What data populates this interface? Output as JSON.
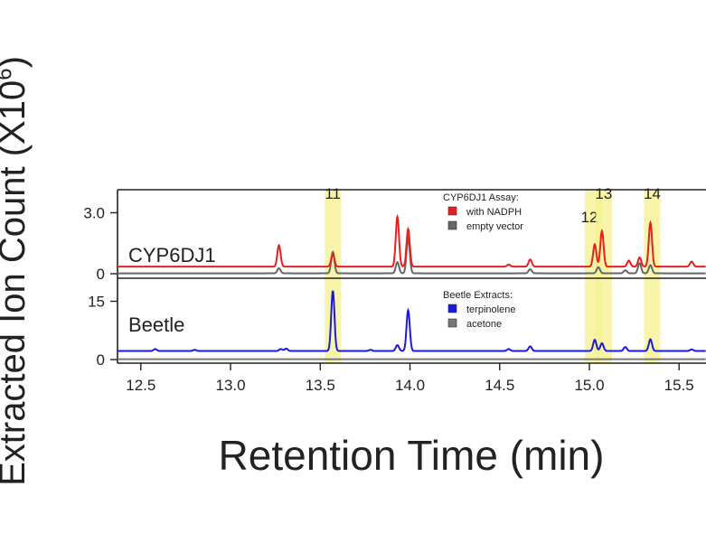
{
  "chart_data": [
    {
      "type": "line",
      "panel_label": "CYP6DJ1",
      "legend_title": "CYP6DJ1 Assay:",
      "legend": [
        "with NADPH",
        "empty vector"
      ],
      "y_ticks": [
        "3.0",
        "0"
      ],
      "ylim": [
        0,
        3.6
      ],
      "series": [
        {
          "name": "with NADPH",
          "color": "#e8201c",
          "baseline": 0.35,
          "peaks": [
            [
              13.27,
              1.05
            ],
            [
              13.57,
              0.6
            ],
            [
              13.93,
              2.45
            ],
            [
              13.99,
              1.85
            ],
            [
              14.55,
              0.1
            ],
            [
              14.67,
              0.35
            ],
            [
              15.03,
              1.1
            ],
            [
              15.07,
              1.75
            ],
            [
              15.22,
              0.3
            ],
            [
              15.28,
              0.45
            ],
            [
              15.34,
              2.15
            ],
            [
              15.57,
              0.25
            ]
          ]
        },
        {
          "name": "empty vector",
          "color": "#666666",
          "baseline": 0.02,
          "peaks": [
            [
              13.27,
              0.25
            ],
            [
              13.57,
              1.05
            ],
            [
              13.93,
              0.55
            ],
            [
              13.99,
              1.75
            ],
            [
              14.67,
              0.2
            ],
            [
              15.05,
              0.3
            ],
            [
              15.2,
              0.15
            ],
            [
              15.28,
              0.5
            ],
            [
              15.34,
              0.4
            ]
          ]
        }
      ]
    },
    {
      "type": "line",
      "panel_label": "Beetle",
      "legend_title": "Beetle Extracts:",
      "legend": [
        "terpinolene",
        "acetone"
      ],
      "y_ticks": [
        "15",
        "0"
      ],
      "ylim": [
        0,
        20
      ],
      "series": [
        {
          "name": "terpinolene",
          "color": "#1a1ae6",
          "baseline": 2.2,
          "peaks": [
            [
              12.58,
              0.5
            ],
            [
              12.8,
              0.3
            ],
            [
              13.28,
              0.5
            ],
            [
              13.31,
              0.6
            ],
            [
              13.57,
              15.5
            ],
            [
              13.78,
              0.3
            ],
            [
              13.93,
              1.5
            ],
            [
              13.99,
              10.5
            ],
            [
              14.55,
              0.5
            ],
            [
              14.67,
              1.2
            ],
            [
              15.03,
              2.9
            ],
            [
              15.07,
              2.0
            ],
            [
              15.2,
              1.0
            ],
            [
              15.34,
              3.0
            ],
            [
              15.57,
              0.4
            ]
          ]
        },
        {
          "name": "acetone",
          "color": "#777777",
          "baseline": 0.1,
          "peaks": []
        }
      ]
    }
  ],
  "x_ticks": [
    "12.5",
    "13.0",
    "13.5",
    "14.0",
    "14.5",
    "15.0",
    "15.5"
  ],
  "x_tick_values": [
    12.5,
    13.0,
    13.5,
    14.0,
    14.5,
    15.0,
    15.5
  ],
  "xlim": [
    12.37,
    15.65
  ],
  "xlabel": "Retention Time (min)",
  "ylabel": "Extracted Ion Count (X10",
  "ylabel_exp": "6",
  "ylabel_close": ")",
  "highlights": [
    {
      "label": "11",
      "center": 13.57
    },
    {
      "label": "12",
      "center": 15.02
    },
    {
      "label": "13",
      "center": 15.08
    },
    {
      "label": "14",
      "center": 15.35
    }
  ],
  "colors": {
    "highlight": "#f6f28e",
    "axis": "#222222"
  }
}
